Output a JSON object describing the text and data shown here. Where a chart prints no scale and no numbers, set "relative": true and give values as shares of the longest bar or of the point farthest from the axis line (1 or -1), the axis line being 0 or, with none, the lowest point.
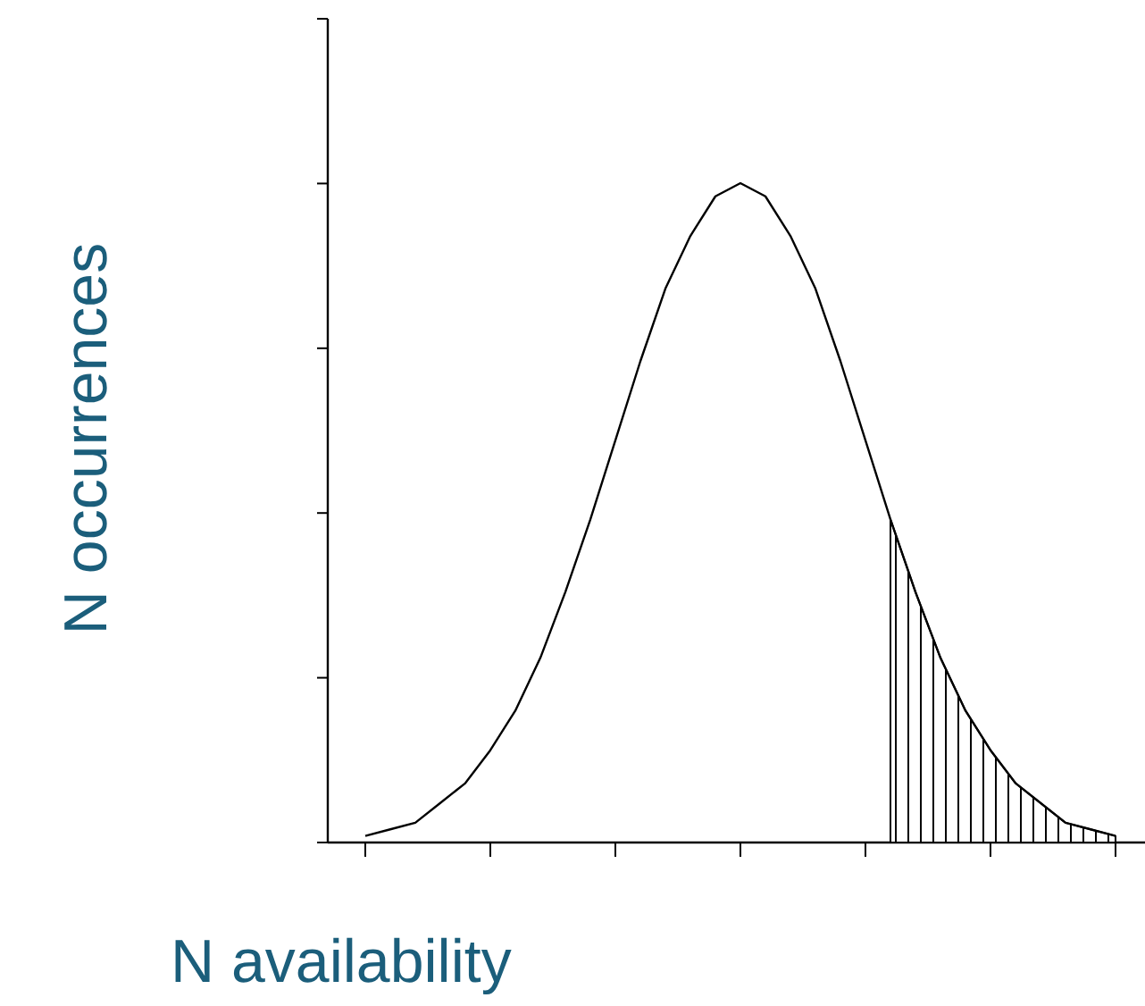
{
  "chart_data": {
    "type": "line",
    "relative": true,
    "xlabel": "N availability",
    "ylabel": "N occurrences",
    "categories": [
      null,
      null,
      null,
      null,
      null,
      null,
      null,
      null,
      null,
      null,
      null,
      null,
      null,
      null,
      null,
      null,
      null,
      null,
      null,
      null,
      null,
      null,
      null,
      null,
      null,
      null,
      null,
      null,
      null,
      null,
      null
    ],
    "series": [
      {
        "color": "#000000",
        "values": [
          0.01,
          0.02,
          0.03,
          0.06,
          0.09,
          0.14,
          0.2,
          0.28,
          0.38,
          0.49,
          0.61,
          0.73,
          0.84,
          0.92,
          0.98,
          1.0,
          0.98,
          0.92,
          0.84,
          0.73,
          0.61,
          0.49,
          0.38,
          0.28,
          0.2,
          0.14,
          0.09,
          0.06,
          0.03,
          0.02,
          0.01
        ]
      },
      {
        "type": "area",
        "color": "#000000",
        "values": [
          null,
          null,
          null,
          null,
          null,
          null,
          null,
          null,
          null,
          null,
          null,
          null,
          null,
          null,
          null,
          null,
          null,
          null,
          null,
          null,
          null,
          0.49,
          0.38,
          0.28,
          0.2,
          0.14,
          0.09,
          0.06,
          0.03,
          0.02,
          0.01
        ]
      }
    ]
  }
}
